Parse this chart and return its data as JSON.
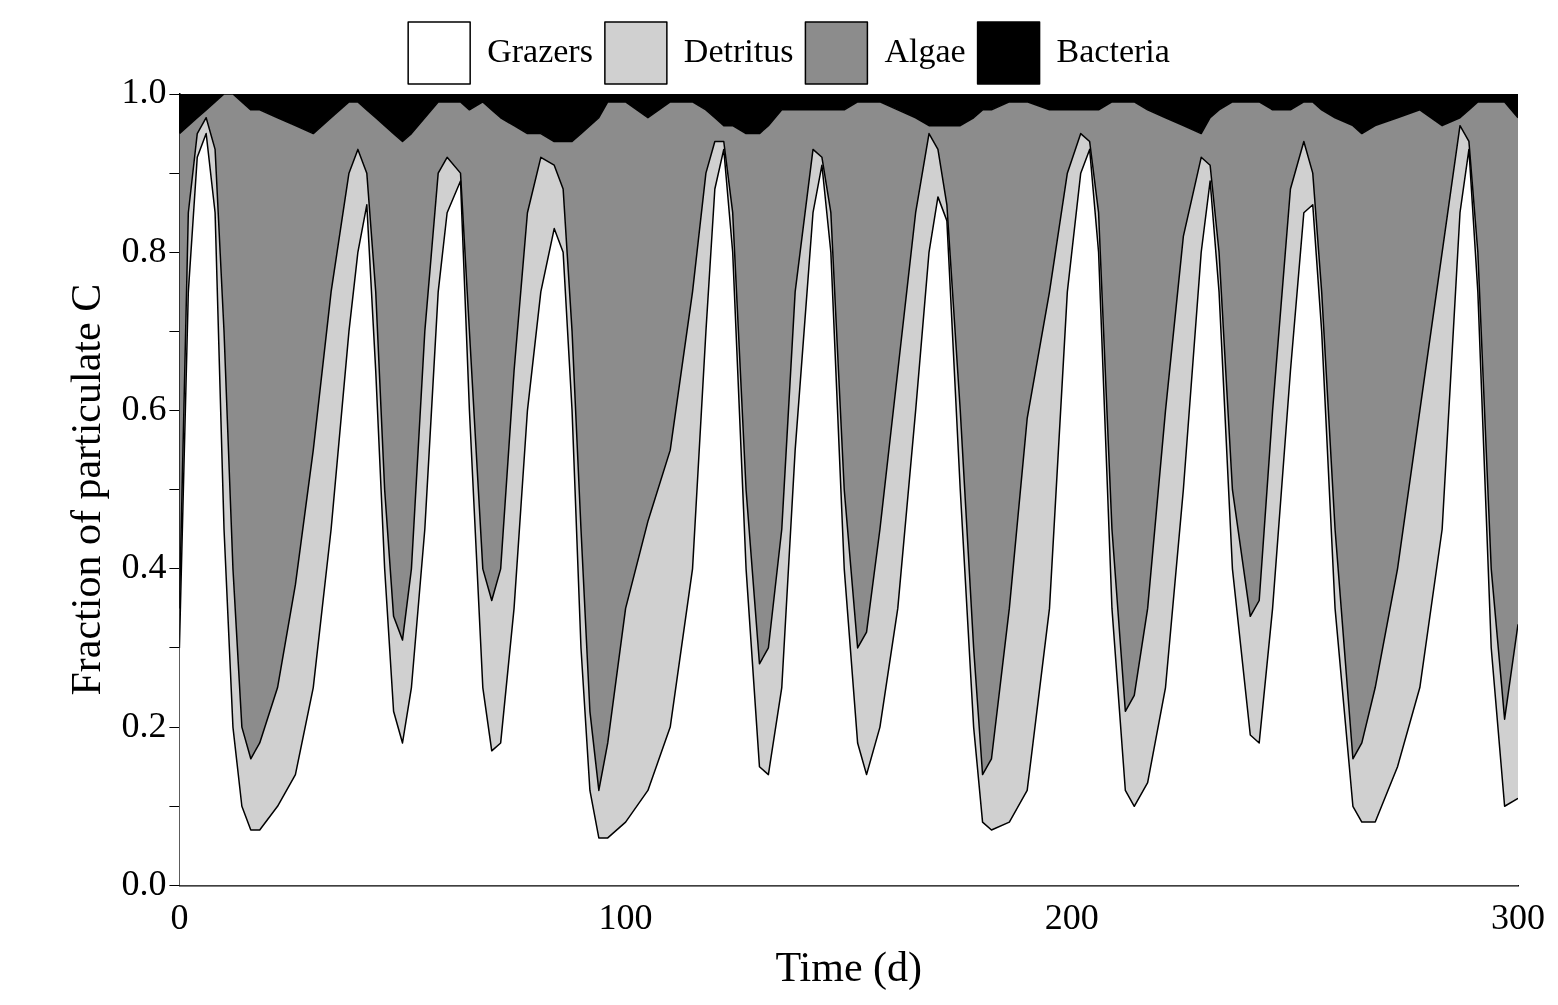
{
  "chart_data": {
    "type": "area",
    "stacked": true,
    "xlabel": "Time (d)",
    "ylabel": "Fraction of particulate C",
    "legend": "top",
    "xlim": [
      0,
      300
    ],
    "xticks": [
      0,
      100,
      200,
      300
    ],
    "ylim": [
      0,
      1
    ],
    "yticks": [
      {
        "value": 0,
        "label": "0.0"
      },
      {
        "value": 0.1,
        "label": null
      },
      {
        "value": 0.2,
        "label": "0.2"
      },
      {
        "value": 0.3,
        "label": null
      },
      {
        "value": 0.4,
        "label": "0.4"
      },
      {
        "value": 0.5,
        "label": null
      },
      {
        "value": 0.6,
        "label": "0.6"
      },
      {
        "value": 0.7,
        "label": null
      },
      {
        "value": 0.8,
        "label": "0.8"
      },
      {
        "value": 0.9,
        "label": null
      },
      {
        "value": 1,
        "label": "1.0"
      }
    ],
    "x": [
      0,
      2,
      4,
      6,
      8,
      10,
      12,
      14,
      16,
      18,
      22,
      26,
      30,
      34,
      38,
      40,
      42,
      44,
      46,
      48,
      50,
      52,
      55,
      58,
      60,
      63,
      65,
      68,
      70,
      72,
      75,
      78,
      81,
      84,
      86,
      88,
      90,
      92,
      94,
      96,
      100,
      105,
      110,
      115,
      118,
      120,
      122,
      124,
      127,
      130,
      132,
      135,
      138,
      142,
      144,
      146,
      149,
      152,
      154,
      157,
      161,
      165,
      168,
      170,
      172,
      175,
      178,
      180,
      182,
      186,
      190,
      195,
      199,
      202,
      204,
      206,
      209,
      212,
      214,
      217,
      221,
      225,
      229,
      231,
      233,
      236,
      240,
      242,
      245,
      249,
      252,
      254,
      256,
      259,
      263,
      265,
      268,
      273,
      278,
      283,
      287,
      289,
      291,
      294,
      297,
      300
    ],
    "series": [
      {
        "name": "Grazers",
        "color": "#ffffff",
        "values": [
          0.3,
          0.75,
          0.92,
          0.95,
          0.85,
          0.45,
          0.2,
          0.1,
          0.07,
          0.07,
          0.1,
          0.14,
          0.25,
          0.45,
          0.7,
          0.8,
          0.86,
          0.65,
          0.4,
          0.22,
          0.18,
          0.25,
          0.45,
          0.75,
          0.85,
          0.89,
          0.6,
          0.25,
          0.17,
          0.18,
          0.35,
          0.6,
          0.75,
          0.83,
          0.8,
          0.6,
          0.3,
          0.12,
          0.06,
          0.06,
          0.08,
          0.12,
          0.2,
          0.4,
          0.7,
          0.88,
          0.93,
          0.8,
          0.4,
          0.15,
          0.14,
          0.25,
          0.55,
          0.85,
          0.91,
          0.8,
          0.4,
          0.18,
          0.14,
          0.2,
          0.35,
          0.6,
          0.8,
          0.87,
          0.84,
          0.5,
          0.2,
          0.08,
          0.07,
          0.08,
          0.12,
          0.35,
          0.75,
          0.9,
          0.93,
          0.8,
          0.35,
          0.12,
          0.1,
          0.13,
          0.25,
          0.5,
          0.8,
          0.89,
          0.75,
          0.4,
          0.19,
          0.18,
          0.35,
          0.65,
          0.85,
          0.86,
          0.7,
          0.35,
          0.1,
          0.08,
          0.08,
          0.15,
          0.25,
          0.45,
          0.85,
          0.93,
          0.75,
          0.3,
          0.1,
          0.11
        ]
      },
      {
        "name": "Detritus",
        "color": "#d0d0d0",
        "values": [
          0.05,
          0.1,
          0.03,
          0.02,
          0.08,
          0.25,
          0.2,
          0.1,
          0.09,
          0.11,
          0.15,
          0.24,
          0.3,
          0.3,
          0.2,
          0.13,
          0.04,
          0.1,
          0.1,
          0.12,
          0.13,
          0.15,
          0.25,
          0.15,
          0.07,
          0.01,
          0.1,
          0.15,
          0.19,
          0.22,
          0.3,
          0.25,
          0.17,
          0.08,
          0.08,
          0.1,
          0.15,
          0.1,
          0.06,
          0.12,
          0.27,
          0.34,
          0.35,
          0.35,
          0.2,
          0.06,
          0.01,
          0.05,
          0.1,
          0.13,
          0.16,
          0.2,
          0.2,
          0.08,
          0.01,
          0.05,
          0.1,
          0.12,
          0.18,
          0.25,
          0.3,
          0.25,
          0.15,
          0.06,
          0.02,
          0.1,
          0.1,
          0.06,
          0.09,
          0.27,
          0.47,
          0.4,
          0.15,
          0.05,
          0.01,
          0.05,
          0.1,
          0.1,
          0.14,
          0.22,
          0.35,
          0.32,
          0.12,
          0.02,
          0.05,
          0.1,
          0.15,
          0.18,
          0.25,
          0.23,
          0.09,
          0.04,
          0.05,
          0.1,
          0.06,
          0.1,
          0.17,
          0.25,
          0.35,
          0.35,
          0.11,
          0.01,
          0.05,
          0.1,
          0.11,
          0.22
        ]
      },
      {
        "name": "Algae",
        "color": "#8c8c8c",
        "values": [
          0.6,
          0.11,
          0.02,
          0.01,
          0.06,
          0.3,
          0.6,
          0.79,
          0.82,
          0.8,
          0.72,
          0.58,
          0.4,
          0.22,
          0.09,
          0.06,
          0.08,
          0.22,
          0.46,
          0.61,
          0.63,
          0.55,
          0.27,
          0.09,
          0.07,
          0.09,
          0.28,
          0.59,
          0.62,
          0.57,
          0.31,
          0.1,
          0.03,
          0.03,
          0.06,
          0.24,
          0.5,
          0.74,
          0.85,
          0.81,
          0.64,
          0.51,
          0.44,
          0.24,
          0.08,
          0.03,
          0.02,
          0.11,
          0.45,
          0.67,
          0.66,
          0.53,
          0.23,
          0.05,
          0.06,
          0.13,
          0.48,
          0.69,
          0.67,
          0.54,
          0.33,
          0.12,
          0.01,
          0.03,
          0.1,
          0.36,
          0.67,
          0.84,
          0.82,
          0.64,
          0.4,
          0.23,
          0.08,
          0.03,
          0.04,
          0.13,
          0.54,
          0.77,
          0.75,
          0.63,
          0.37,
          0.14,
          0.03,
          0.06,
          0.18,
          0.49,
          0.65,
          0.63,
          0.38,
          0.1,
          0.05,
          0.09,
          0.23,
          0.52,
          0.8,
          0.77,
          0.71,
          0.57,
          0.38,
          0.16,
          0.01,
          0.04,
          0.19,
          0.59,
          0.78,
          0.64
        ]
      },
      {
        "name": "Bacteria",
        "color": "#000000",
        "values": [
          0.05,
          0.04,
          0.03,
          0.02,
          0.01,
          0,
          0,
          0.01,
          0.02,
          0.02,
          0.03,
          0.04,
          0.05,
          0.03,
          0.01,
          0.01,
          0.02,
          0.03,
          0.04,
          0.05,
          0.06,
          0.05,
          0.03,
          0.01,
          0.01,
          0.01,
          0.02,
          0.01,
          0.02,
          0.03,
          0.04,
          0.05,
          0.05,
          0.06,
          0.06,
          0.06,
          0.05,
          0.04,
          0.03,
          0.01,
          0.01,
          0.03,
          0.01,
          0.01,
          0.02,
          0.03,
          0.04,
          0.04,
          0.05,
          0.05,
          0.04,
          0.02,
          0.02,
          0.02,
          0.02,
          0.02,
          0.02,
          0.01,
          0.01,
          0.01,
          0.02,
          0.03,
          0.04,
          0.04,
          0.04,
          0.04,
          0.03,
          0.02,
          0.02,
          0.01,
          0.01,
          0.02,
          0.02,
          0.02,
          0.02,
          0.02,
          0.01,
          0.01,
          0.01,
          0.02,
          0.03,
          0.04,
          0.05,
          0.03,
          0.02,
          0.01,
          0.01,
          0.01,
          0.02,
          0.02,
          0.01,
          0.01,
          0.02,
          0.03,
          0.04,
          0.05,
          0.04,
          0.03,
          0.02,
          0.04,
          0.03,
          0.02,
          0.01,
          0.01,
          0.01,
          0.03
        ]
      }
    ]
  }
}
